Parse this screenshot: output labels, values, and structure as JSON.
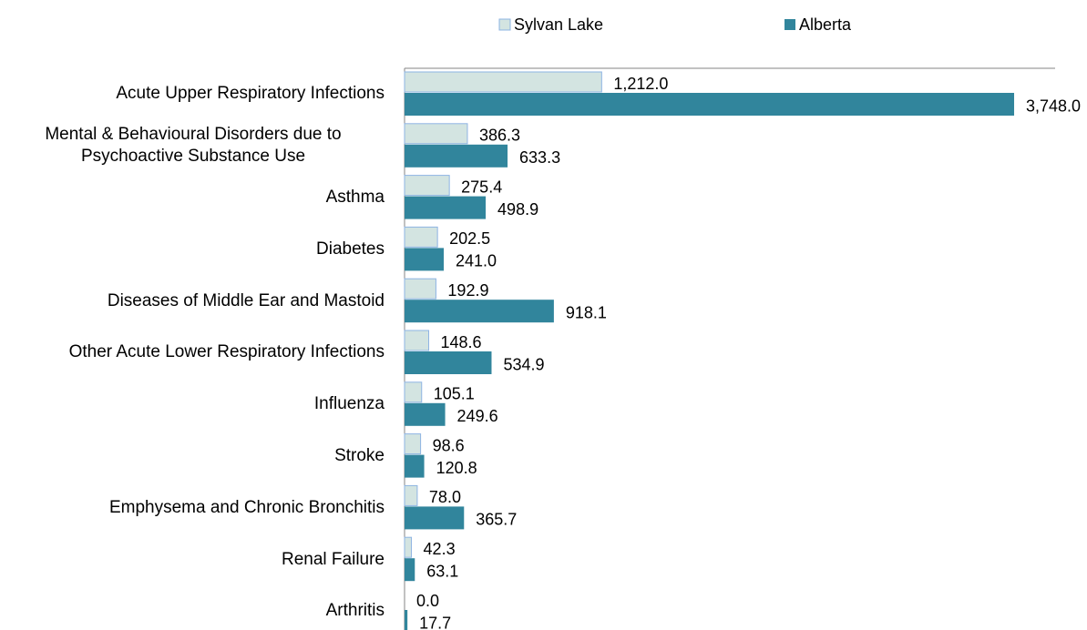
{
  "chart_data": {
    "type": "bar",
    "orientation": "horizontal",
    "categories": [
      "Acute Upper Respiratory Infections",
      "Mental & Behavioural Disorders due to Psychoactive Substance Use",
      "Asthma",
      "Diabetes",
      "Diseases of Middle Ear and Mastoid",
      "Other Acute Lower Respiratory Infections",
      "Influenza",
      "Stroke",
      "Emphysema and Chronic Bronchitis",
      "Renal Failure",
      "Arthritis"
    ],
    "series": [
      {
        "name": "Sylvan Lake",
        "color": "#d3e4e1",
        "edge_color": "#8eb4e3",
        "values": [
          1212.0,
          386.3,
          275.4,
          202.5,
          192.9,
          148.6,
          105.1,
          98.6,
          78.0,
          42.3,
          0.0
        ],
        "value_labels": [
          "1,212.0",
          "386.3",
          "275.4",
          "202.5",
          "192.9",
          "148.6",
          "105.1",
          "98.6",
          "78.0",
          "42.3",
          "0.0"
        ]
      },
      {
        "name": "Alberta",
        "color": "#31859c",
        "values": [
          3748.0,
          633.3,
          498.9,
          241.0,
          918.1,
          534.9,
          249.6,
          120.8,
          365.7,
          63.1,
          17.7
        ],
        "value_labels": [
          "3,748.0",
          "633.3",
          "498.9",
          "241.0",
          "918.1",
          "534.9",
          "249.6",
          "120.8",
          "365.7",
          "63.1",
          "17.7"
        ]
      }
    ],
    "xlim": [
      0,
      4000
    ],
    "legend": "top"
  }
}
